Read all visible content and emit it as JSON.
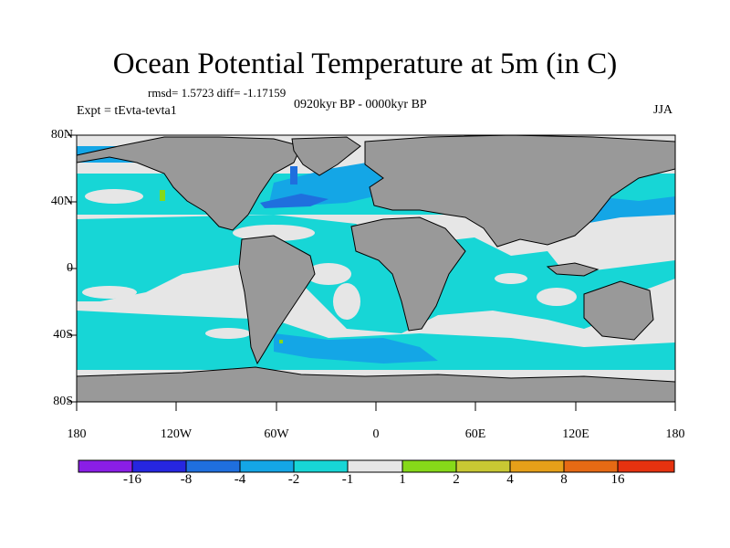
{
  "title": "Ocean Potential Temperature at 5m (in C)",
  "stats_text": "rmsd= 1.5723 diff= -1.17159",
  "period_text": "0920kyr BP - 0000kyr BP",
  "experiment_text": "Expt = tEvta-tevta1",
  "season": "JJA",
  "lat_labels": [
    "80N",
    "40N",
    "0",
    "40S",
    "80S"
  ],
  "lon_labels": [
    "180",
    "120W",
    "60W",
    "0",
    "60E",
    "120E",
    "180"
  ],
  "colorbar": {
    "labels": [
      "-16",
      "-8",
      "-4",
      "-2",
      "-1",
      "1",
      "2",
      "4",
      "8",
      "16"
    ],
    "colors": [
      "#8a1ee6",
      "#2626e0",
      "#1f6fde",
      "#14a6e6",
      "#17d6d6",
      "#e6e6e6",
      "#86d919",
      "#c8c833",
      "#e6a019",
      "#e66a14",
      "#e6320f"
    ]
  },
  "colors": {
    "land": "#999999",
    "neutral_ocean": "#e6e6e6",
    "cool_ocean": "#17d6d6",
    "cold_ocean": "#14a6e6",
    "colder_ocean": "#1f6fde",
    "warm_spot": "#86d919"
  }
}
